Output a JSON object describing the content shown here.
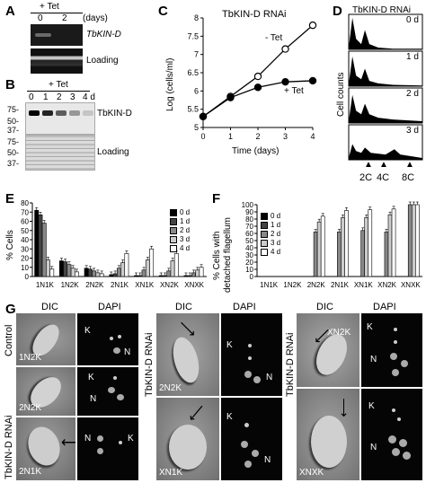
{
  "panels": {
    "A": {
      "letter": "A",
      "treatment": "+ Tet",
      "lane_labels": [
        "0",
        "2"
      ],
      "unit": "(days)",
      "blot_labels": [
        "TbKIN-D",
        "Loading"
      ]
    },
    "B": {
      "letter": "B",
      "treatment": "+ Tet",
      "lane_labels": [
        "0",
        "1",
        "2",
        "3",
        "4 d"
      ],
      "mw_markers": [
        "75-",
        "50-",
        "37-"
      ],
      "mw_markers_lower": [
        "75-",
        "50-",
        "37-"
      ],
      "blot_labels": [
        "TbKIN-D",
        "Loading"
      ],
      "band_intensity": [
        1.0,
        0.85,
        0.6,
        0.35,
        0.15
      ]
    },
    "C": {
      "letter": "C",
      "title": "TbKIN-D RNAi",
      "xlabel": "Time (days)",
      "ylabel": "Log (cells/ml)",
      "series_labels": [
        "- Tet",
        "+ Tet"
      ]
    },
    "D": {
      "letter": "D",
      "title": "TbKIN-D RNAi",
      "ylabel": "Cell counts",
      "day_labels": [
        "0 d",
        "1 d",
        "2 d",
        "3 d"
      ],
      "marker_labels": [
        "2C",
        "4C",
        "8C"
      ]
    },
    "E": {
      "letter": "E",
      "ylabel": "% Cells",
      "legend": [
        "0 d",
        "1 d",
        "2 d",
        "3 d",
        "4 d"
      ]
    },
    "F": {
      "letter": "F",
      "ylabel_lines": [
        "% Cells with",
        "detached flagellum"
      ],
      "legend": [
        "0 d",
        "1 d",
        "2 d",
        "3 d",
        "4 d"
      ]
    },
    "G": {
      "letter": "G",
      "col_headers": [
        "DIC",
        "DAPI",
        "DIC",
        "DAPI",
        "DIC",
        "DAPI"
      ],
      "side_labels": [
        "Control",
        "TbKIN-D RNAi",
        "TbKIN-D RNAi",
        "TbKIN-D RNAi"
      ],
      "cell_labels": [
        "1N2K",
        "2N2K",
        "2N1K",
        "2N2K",
        "XN1K",
        "XN2K",
        "XNXK"
      ],
      "dapi_labels": {
        "K": "K",
        "N": "N"
      }
    }
  },
  "chart_data": [
    {
      "panel": "C",
      "type": "line",
      "title": "TbKIN-D RNAi",
      "xlabel": "Time (days)",
      "ylabel": "Log (cells/ml)",
      "x": [
        0,
        1,
        2,
        3,
        4
      ],
      "xticks": [
        "0",
        "1",
        "2",
        "3",
        "4"
      ],
      "yticks": [
        "5",
        "5.5",
        "6",
        "6.5",
        "7",
        "7.5",
        "8"
      ],
      "ylim": [
        5,
        8
      ],
      "series": [
        {
          "name": "- Tet",
          "marker": "open-circle",
          "values": [
            5.3,
            5.85,
            6.4,
            7.15,
            7.8
          ]
        },
        {
          "name": "+ Tet",
          "marker": "filled-circle",
          "values": [
            5.3,
            5.82,
            6.1,
            6.25,
            6.28
          ]
        }
      ]
    },
    {
      "panel": "D",
      "type": "area",
      "title": "TbKIN-D RNAi",
      "ylabel": "Cell counts",
      "histograms": [
        "0 d",
        "1 d",
        "2 d",
        "3 d"
      ],
      "markers": [
        "2C",
        "4C",
        "8C"
      ]
    },
    {
      "panel": "E",
      "type": "bar",
      "ylabel": "% Cells",
      "categories": [
        "1N1K",
        "1N2K",
        "2N2K",
        "2N1K",
        "XN1K",
        "XN2K",
        "XNXK"
      ],
      "yticks": [
        "0",
        "10",
        "20",
        "30",
        "40",
        "50",
        "60",
        "70",
        "80"
      ],
      "ylim": [
        0,
        80
      ],
      "series": [
        {
          "name": "0 d",
          "color": "#000000",
          "values": [
            72,
            17,
            9,
            2,
            1,
            1,
            1
          ]
        },
        {
          "name": "1 d",
          "color": "#444444",
          "values": [
            67,
            16,
            8,
            3,
            1,
            1,
            1
          ]
        },
        {
          "name": "2 d",
          "color": "#888888",
          "values": [
            58,
            13,
            6,
            9,
            7,
            6,
            4
          ]
        },
        {
          "name": "3 d",
          "color": "#cccccc",
          "values": [
            18,
            9,
            4,
            15,
            18,
            17,
            7
          ]
        },
        {
          "name": "4 d",
          "color": "#ffffff",
          "values": [
            8,
            5,
            3,
            25,
            30,
            25,
            10
          ]
        }
      ]
    },
    {
      "panel": "F",
      "type": "bar",
      "ylabel": "% Cells with detached flagellum",
      "categories": [
        "1N1K",
        "1N2K",
        "2N2K",
        "2N1K",
        "XN1K",
        "XN2K",
        "XNXK"
      ],
      "yticks": [
        "0",
        "10",
        "20",
        "30",
        "40",
        "50",
        "60",
        "70",
        "80",
        "90",
        "100"
      ],
      "ylim": [
        0,
        100
      ],
      "series": [
        {
          "name": "0 d",
          "color": "#000000",
          "values": [
            0,
            0,
            0,
            0,
            0,
            0,
            0
          ]
        },
        {
          "name": "1 d",
          "color": "#444444",
          "values": [
            0,
            0,
            0,
            0,
            0,
            0,
            0
          ]
        },
        {
          "name": "2 d",
          "color": "#888888",
          "values": [
            0,
            0,
            62,
            62,
            64,
            62,
            100
          ]
        },
        {
          "name": "3 d",
          "color": "#cccccc",
          "values": [
            0,
            0,
            76,
            82,
            82,
            86,
            100
          ]
        },
        {
          "name": "4 d",
          "color": "#ffffff",
          "values": [
            0,
            0,
            84,
            92,
            93,
            94,
            100
          ]
        }
      ]
    }
  ]
}
